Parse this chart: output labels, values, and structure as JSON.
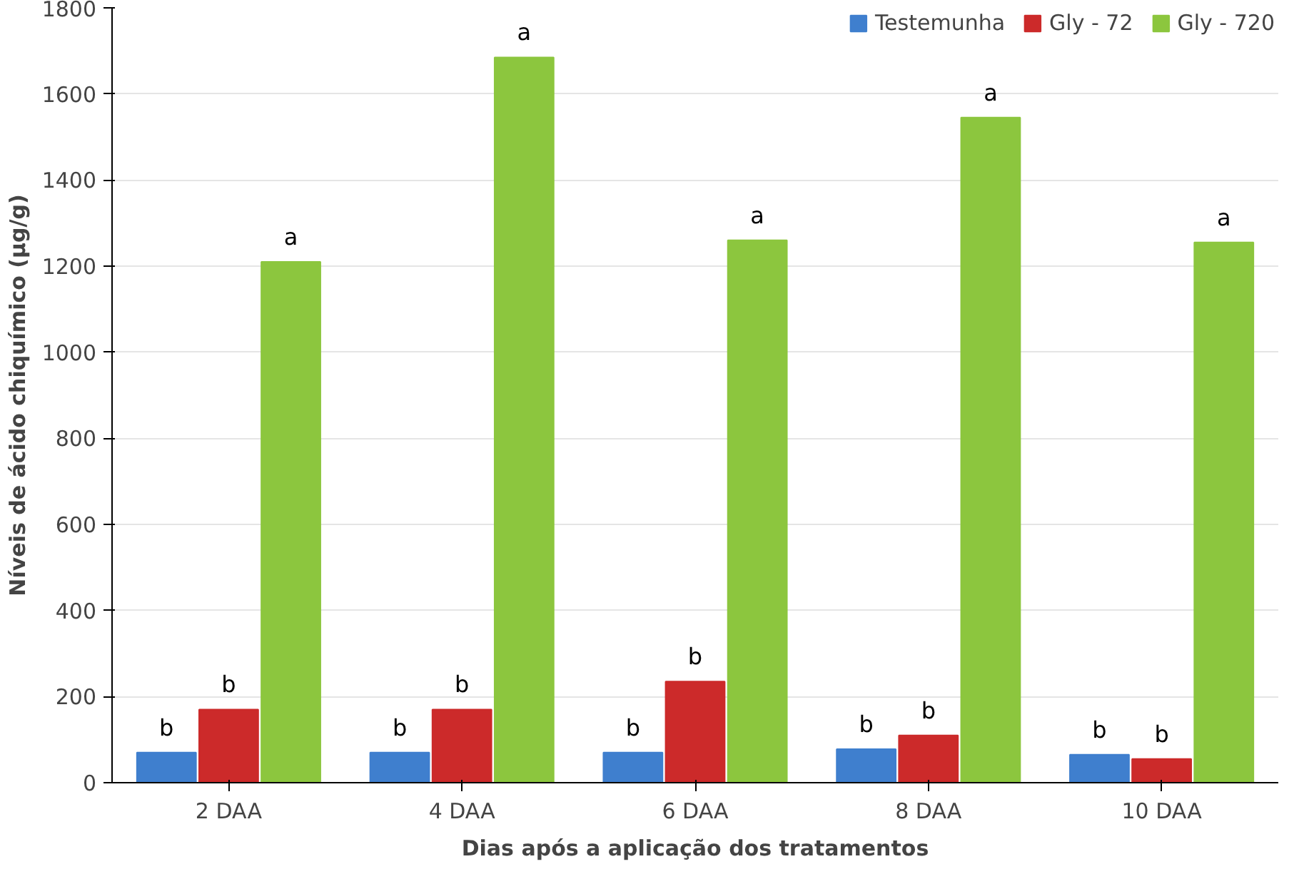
{
  "chart_data": {
    "type": "bar",
    "xlabel": "Dias após a aplicação dos tratamentos",
    "ylabel": "Níveis de ácido chiquímico (µg/g)",
    "categories": [
      "2 DAA",
      "4 DAA",
      "6 DAA",
      "8 DAA",
      "10 DAA"
    ],
    "series": [
      {
        "name": "Testemunha",
        "color": "#3f7fce",
        "values": [
          70,
          70,
          70,
          78,
          65
        ],
        "value_labels": [
          "b",
          "b",
          "b",
          "b",
          "b"
        ]
      },
      {
        "name": "Gly - 72",
        "color": "#cc2a2a",
        "values": [
          170,
          170,
          235,
          110,
          55
        ],
        "value_labels": [
          "b",
          "b",
          "b",
          "b",
          "b"
        ]
      },
      {
        "name": "Gly - 720",
        "color": "#8cc63e",
        "values": [
          1210,
          1685,
          1260,
          1545,
          1255
        ],
        "value_labels": [
          "a",
          "a",
          "a",
          "a",
          "a"
        ]
      }
    ],
    "ylim": [
      0,
      1800
    ],
    "yticks": [
      0,
      200,
      400,
      600,
      800,
      1000,
      1200,
      1400,
      1600,
      1800
    ],
    "grid": "y",
    "legend": "top right"
  }
}
